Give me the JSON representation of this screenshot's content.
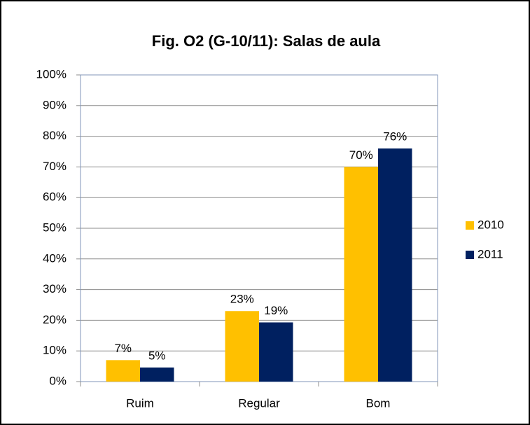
{
  "chart_data": {
    "type": "bar",
    "title": "Fig. O2 (G-10/11): Salas de aula",
    "categories": [
      "Ruim",
      "Regular",
      "Bom"
    ],
    "series": [
      {
        "name": "2010",
        "color": "#ffc000",
        "values": [
          7,
          23,
          70
        ],
        "value_labels": [
          "7%",
          "23%",
          "70%"
        ]
      },
      {
        "name": "2011",
        "color": "#002060",
        "values": [
          4.6,
          19.3,
          76
        ],
        "value_labels": [
          "5%",
          "19%",
          "76%"
        ]
      }
    ],
    "ylim": [
      0,
      100
    ],
    "yticks": [
      {
        "value": 0,
        "label": "0%"
      },
      {
        "value": 10,
        "label": "10%"
      },
      {
        "value": 20,
        "label": "20%"
      },
      {
        "value": 30,
        "label": "30%"
      },
      {
        "value": 40,
        "label": "40%"
      },
      {
        "value": 50,
        "label": "50%"
      },
      {
        "value": 60,
        "label": "60%"
      },
      {
        "value": 70,
        "label": "70%"
      },
      {
        "value": 80,
        "label": "80%"
      },
      {
        "value": 90,
        "label": "90%"
      },
      {
        "value": 100,
        "label": "100%"
      }
    ],
    "grid": true,
    "legend": "right"
  }
}
